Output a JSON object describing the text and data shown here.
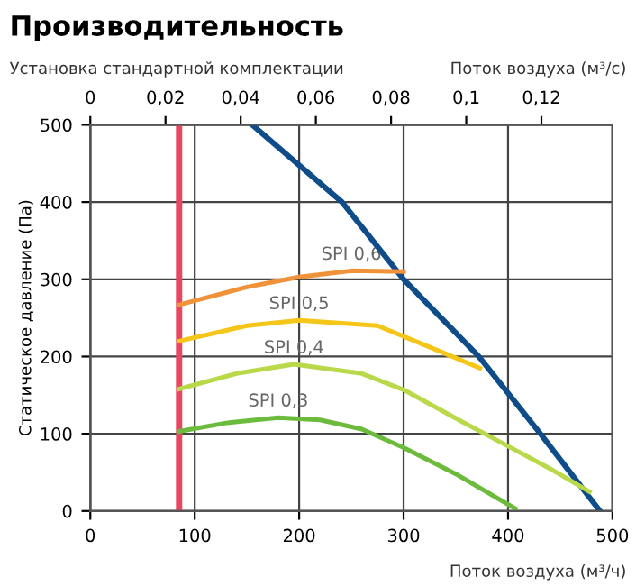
{
  "chart_data": {
    "type": "line",
    "title": "Производительность",
    "subtitle": "Установка стандартной комплектации",
    "xlabel": "Поток воздуха (м³/ч)",
    "x2label": "Поток воздуха (м³/с)",
    "ylabel": "Статическое давление (Па)",
    "xlim": [
      0,
      500
    ],
    "xticks": [
      0,
      100,
      200,
      300,
      400,
      500
    ],
    "ylim": [
      0,
      500
    ],
    "yticks": [
      0,
      100,
      200,
      300,
      400,
      500
    ],
    "x2lim": [
      0,
      0.1389
    ],
    "x2ticks": [
      0,
      {
        "value": 0.02,
        "label": "0,02"
      },
      {
        "value": 0.04,
        "label": "0,04"
      },
      {
        "value": 0.06,
        "label": "0,06"
      },
      {
        "value": 0.08,
        "label": "0,08"
      },
      {
        "value": 0.1,
        "label": "0,1"
      },
      {
        "value": 0.12,
        "label": "0,12"
      }
    ],
    "grid": true,
    "legend": false,
    "ref_lines": [
      {
        "axis": "x",
        "value": 85,
        "color": "#e8475f"
      }
    ],
    "series": [
      {
        "color": "#0f4c8a",
        "x": [
          155,
          241,
          300,
          372,
          431,
          488
        ],
        "values": [
          500,
          400,
          300,
          200,
          100,
          0
        ]
      },
      {
        "name": "SPI 0,6",
        "color": "#f0923a",
        "x": [
          85,
          150,
          200,
          250,
          300
        ],
        "values": [
          267,
          290,
          303,
          311,
          310
        ]
      },
      {
        "name": "SPI 0,5",
        "color": "#f5c518",
        "x": [
          85,
          150,
          200,
          275,
          320,
          373
        ],
        "values": [
          220,
          240,
          247,
          240,
          215,
          185
        ]
      },
      {
        "name": "SPI 0,4",
        "color": "#b9d84a",
        "x": [
          85,
          140,
          195,
          260,
          300,
          350,
          400,
          440,
          478
        ],
        "values": [
          158,
          178,
          190,
          178,
          157,
          120,
          84,
          55,
          25
        ]
      },
      {
        "name": "SPI 0,3",
        "color": "#6cbb3c",
        "x": [
          85,
          130,
          180,
          220,
          260,
          300,
          350,
          407
        ],
        "values": [
          103,
          114,
          121,
          118,
          106,
          82,
          48,
          3
        ]
      }
    ]
  }
}
